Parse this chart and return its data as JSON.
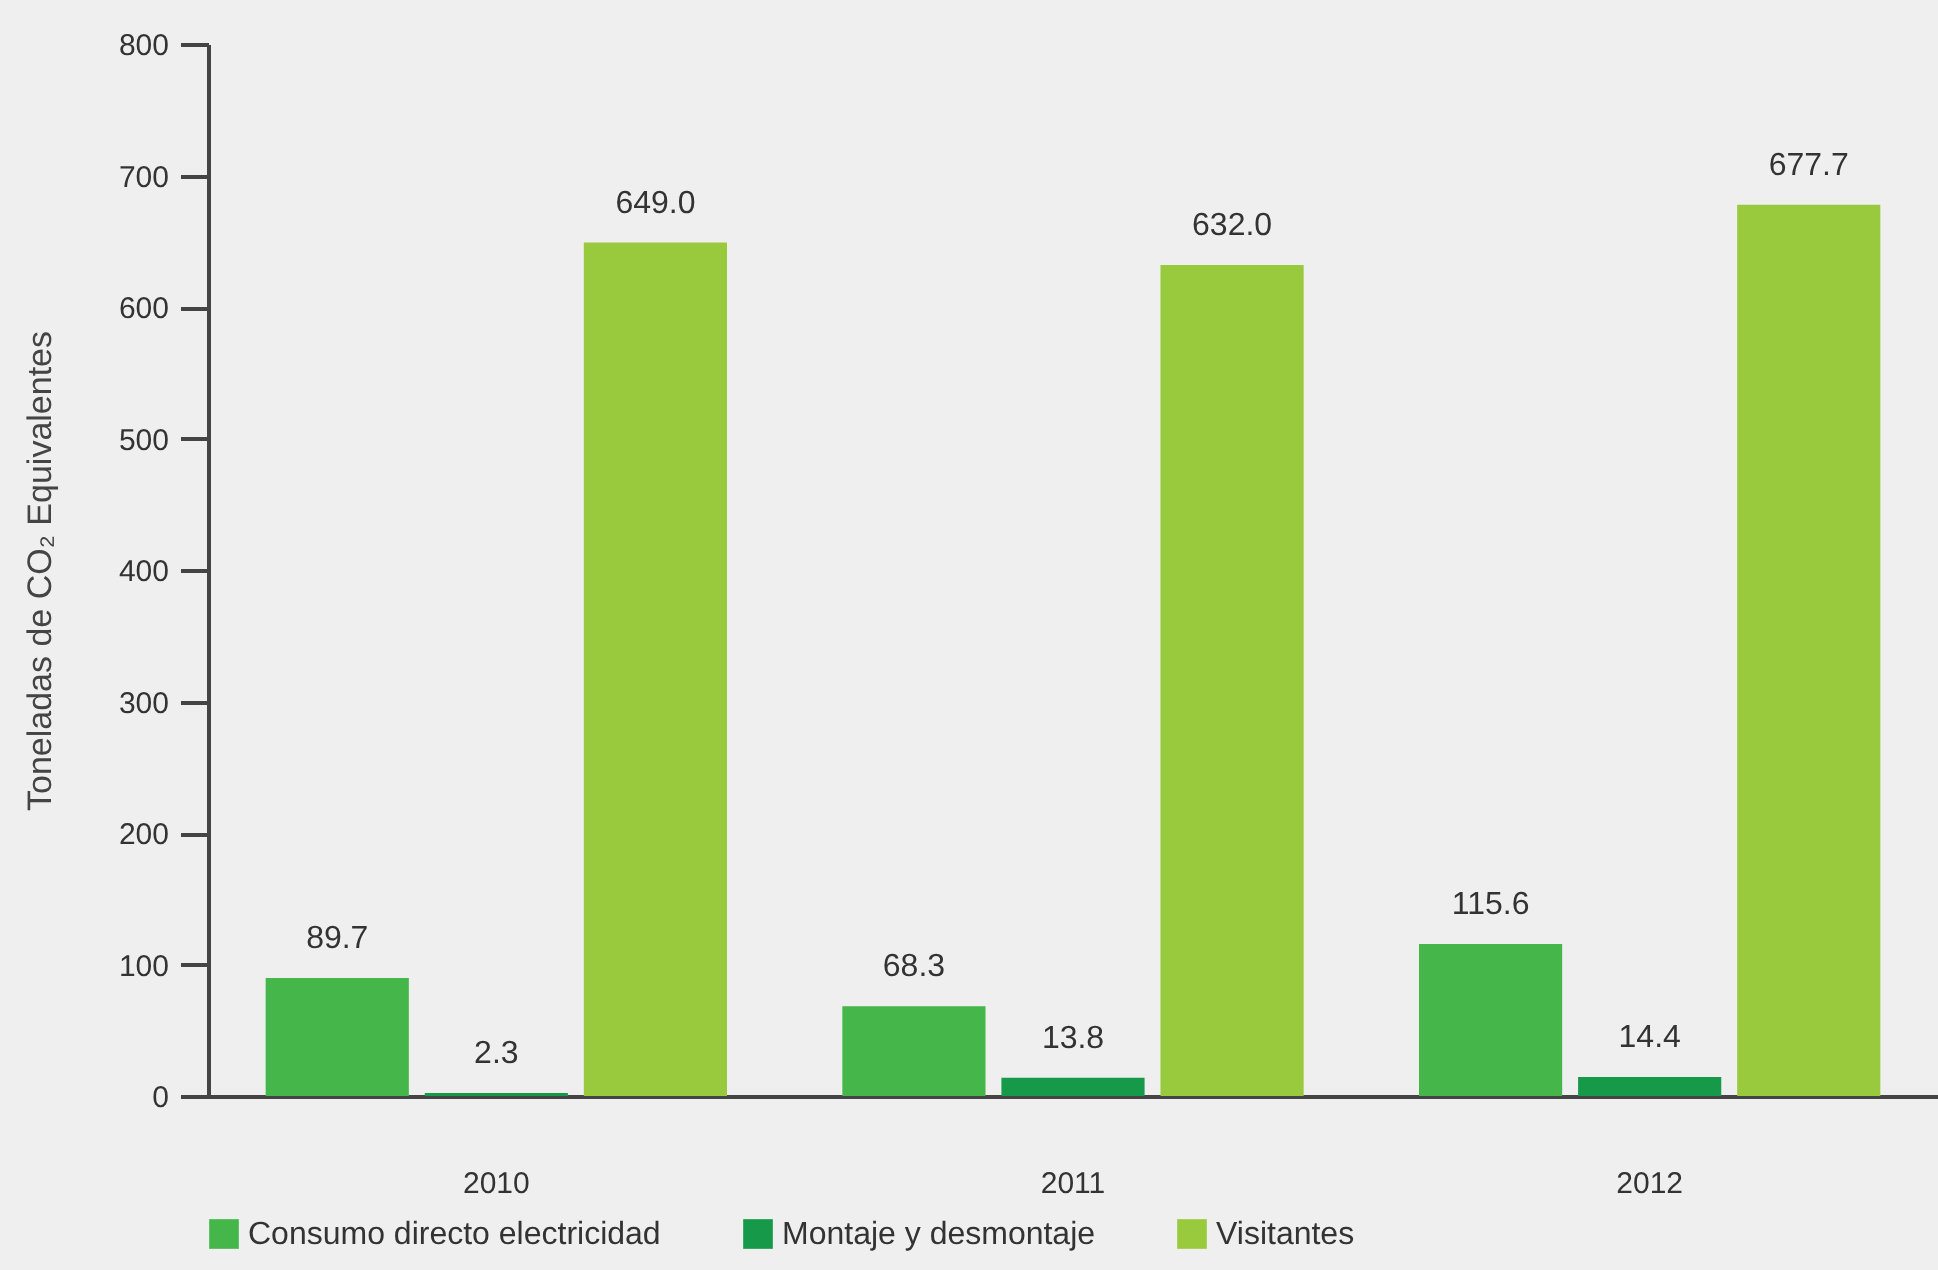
{
  "chart_data": {
    "type": "bar",
    "ylabel": "Toneladas de CO₂ Equivalentes",
    "categories": [
      "2010",
      "2011",
      "2012"
    ],
    "series": [
      {
        "name": "Consumo directo electricidad",
        "color": "#45b649",
        "values": [
          89.7,
          68.3,
          115.6
        ],
        "value_labels": [
          "89.7",
          "68.3",
          "115.6"
        ]
      },
      {
        "name": "Montaje y desmontaje",
        "color": "#169a4a",
        "values": [
          2.3,
          13.8,
          14.4
        ],
        "value_labels": [
          "2.3",
          "13.8",
          "14.4"
        ]
      },
      {
        "name": "Visitantes",
        "color": "#99c93c",
        "values": [
          649.0,
          632.0,
          677.7
        ],
        "value_labels": [
          "649.0",
          "632.0",
          "677.7"
        ]
      }
    ],
    "ylim": [
      0,
      800
    ],
    "yticks": [
      0,
      100,
      200,
      300,
      400,
      500,
      600,
      700,
      800
    ],
    "grid": false,
    "legend": "bottom"
  }
}
